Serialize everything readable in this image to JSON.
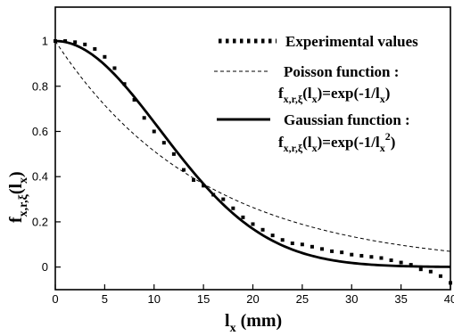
{
  "chart_data": {
    "type": "line",
    "xlabel": {
      "main": "l",
      "sub": "x",
      "unit": "(mm)"
    },
    "ylabel": {
      "main": "f",
      "sub": "x,r,ξ",
      "arg": "(l",
      "argsub": "x",
      "close": ")"
    },
    "xlim": [
      0,
      40
    ],
    "ylim": [
      -0.1,
      1.15
    ],
    "xticks": [
      0,
      5,
      10,
      15,
      20,
      25,
      30,
      35,
      40
    ],
    "xtick_labels": [
      "0",
      "5",
      "10",
      "15",
      "20",
      "25",
      "30",
      "35",
      "40"
    ],
    "yticks": [
      0,
      0.2,
      0.4,
      0.6,
      0.8,
      1
    ],
    "ytick_labels": [
      "0",
      "0.2",
      "0.4",
      "0.6",
      "0.8",
      "1"
    ],
    "grid": false,
    "legend_position": "top-right",
    "series": [
      {
        "name": "Experimental values",
        "style": "dots",
        "x": [
          0,
          1,
          2,
          3,
          4,
          5,
          6,
          7,
          8,
          9,
          10,
          11,
          12,
          13,
          14,
          15,
          16,
          17,
          18,
          19,
          20,
          21,
          22,
          23,
          24,
          25,
          26,
          27,
          28,
          29,
          30,
          31,
          32,
          33,
          34,
          35,
          36,
          37,
          38,
          39,
          40
        ],
        "y": [
          1.0,
          1.0,
          0.995,
          0.985,
          0.965,
          0.93,
          0.88,
          0.81,
          0.74,
          0.66,
          0.6,
          0.55,
          0.5,
          0.43,
          0.385,
          0.36,
          0.32,
          0.3,
          0.26,
          0.22,
          0.19,
          0.165,
          0.14,
          0.12,
          0.105,
          0.1,
          0.09,
          0.08,
          0.07,
          0.065,
          0.055,
          0.05,
          0.045,
          0.04,
          0.03,
          0.02,
          0.01,
          -0.01,
          -0.02,
          -0.04,
          -0.07
        ]
      },
      {
        "name": "Poisson function :",
        "formula": {
          "lhs": "f",
          "lhs_sub": "x,r,ξ",
          "arg": "(l",
          "argsub": "x",
          "rhs": ")=exp(-1/l",
          "rhs_sub": "x",
          "close": ")"
        },
        "style": "dashed",
        "function": "poisson"
      },
      {
        "name": "Gaussian function :",
        "formula": {
          "lhs": "f",
          "lhs_sub": "x,r,ξ",
          "arg": "(l",
          "argsub": "x",
          "rhs": ")=exp(-1/l",
          "rhs_sub": "x",
          "rhs_sup": "2",
          "close": ")"
        },
        "style": "solid",
        "function": "gaussian"
      }
    ]
  }
}
